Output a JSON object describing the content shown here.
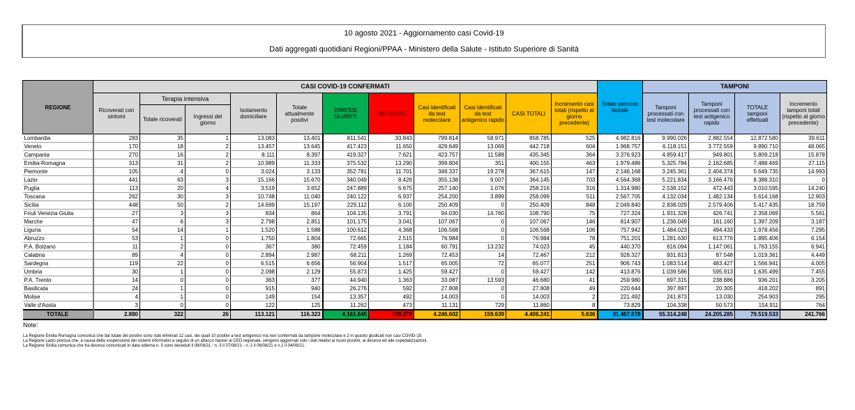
{
  "header": {
    "title": "10 agosto 2021 - Aggiornamento casi Covid-19",
    "subtitle": "Dati aggregati quotidiani Regioni/PPAA - Ministero della Salute - Istituto Superiore di Sanità"
  },
  "table": {
    "group_casi": "CASI COVID-19 CONFERMATI",
    "group_terapia": "Terapia intensiva",
    "group_tamponi": "TAMPONI",
    "columns": [
      "REGIONE",
      "Ricoverati con sintomi",
      "Totale ricoverati",
      "Ingressi del giorno",
      "Isolamento domiciliare",
      "Totale attualmente positivi",
      "DIMESSI GUARITI",
      "DECEDUTI",
      "Casi identificati da test molecolare",
      "Casi identificati da test antigenico rapido",
      "CASI TOTALI",
      "Incremento casi totali (rispetto al giorno precedente)",
      "Totale persone testate",
      "Tamponi processati con test molecolare",
      "Tamponi processati con test antigenico rapido",
      "TOTALE tamponi effettuati",
      "Incremento tamponi totali (rispetto al giorno precedente)"
    ],
    "rows": [
      [
        "Lombardia",
        "283",
        "35",
        "1",
        "13.083",
        "13.401",
        "811.541",
        "33.843",
        "799.814",
        "58.971",
        "858.785",
        "525",
        "4.982.816",
        "9.990.026",
        "2.882.554",
        "12.872.580",
        "39.611"
      ],
      [
        "Veneto",
        "170",
        "18",
        "2",
        "13.457",
        "13.645",
        "417.423",
        "11.650",
        "429.649",
        "13.069",
        "442.718",
        "604",
        "1.968.757",
        "6.118.151",
        "3.772.559",
        "9.890.710",
        "48.065"
      ],
      [
        "Campania",
        "270",
        "16",
        "2",
        "8.111",
        "8.397",
        "419.327",
        "7.621",
        "423.757",
        "11.588",
        "435.345",
        "364",
        "3.376.923",
        "4.859.417",
        "949.801",
        "5.809.218",
        "15.878"
      ],
      [
        "Emilia-Romagna",
        "313",
        "31",
        "2",
        "10.989",
        "11.333",
        "375.532",
        "13.290",
        "399.804",
        "351",
        "400.155",
        "463",
        "1.979.486",
        "5.325.784",
        "2.162.685",
        "7.488.469",
        "27.115"
      ],
      [
        "Piemonte",
        "105",
        "4",
        "0",
        "3.024",
        "3.133",
        "352.781",
        "11.701",
        "348.337",
        "19.278",
        "367.615",
        "147",
        "2.146.168",
        "3.245.361",
        "2.404.374",
        "5.649.735",
        "14.993"
      ],
      [
        "Lazio",
        "441",
        "63",
        "3",
        "15.166",
        "15.670",
        "340.049",
        "8.426",
        "355.138",
        "9.007",
        "364.145",
        "703",
        "4.564.368",
        "5.221.834",
        "3.166.476",
        "8.388.310",
        "0"
      ],
      [
        "Puglia",
        "113",
        "20",
        "4",
        "3.519",
        "3.652",
        "247.889",
        "6.675",
        "257.140",
        "1.076",
        "258.216",
        "316",
        "1.314.980",
        "2.538.152",
        "472.443",
        "3.010.595",
        "14.240"
      ],
      [
        "Toscana",
        "262",
        "30",
        "3",
        "10.748",
        "11.040",
        "240.122",
        "6.937",
        "254.200",
        "3.899",
        "258.099",
        "511",
        "2.567.705",
        "4.132.034",
        "1.482.134",
        "5.614.168",
        "12.903"
      ],
      [
        "Sicilia",
        "448",
        "50",
        "2",
        "14.699",
        "15.197",
        "229.112",
        "6.100",
        "250.409",
        "0",
        "250.409",
        "848",
        "2.049.840",
        "2.838.029",
        "2.579.406",
        "5.417.435",
        "18.759"
      ],
      [
        "Friuli Venezia Giulia",
        "27",
        "3",
        "3",
        "834",
        "864",
        "104.135",
        "3.791",
        "94.030",
        "14.760",
        "108.790",
        "75",
        "727.324",
        "1.931.328",
        "426.741",
        "2.358.069",
        "5.561"
      ],
      [
        "Marche",
        "47",
        "6",
        "3",
        "2.798",
        "2.851",
        "101.175",
        "3.041",
        "107.067",
        "0",
        "107.067",
        "146",
        "814.907",
        "1.236.049",
        "161.160",
        "1.397.209",
        "3.187"
      ],
      [
        "Liguria",
        "54",
        "14",
        "1",
        "1.520",
        "1.588",
        "100.612",
        "4.368",
        "106.568",
        "0",
        "106.568",
        "106",
        "757.942",
        "1.484.023",
        "494.433",
        "1.978.456",
        "7.295"
      ],
      [
        "Abruzzo",
        "53",
        "1",
        "0",
        "1.750",
        "1.804",
        "72.665",
        "2.515",
        "76.984",
        "0",
        "76.984",
        "78",
        "751.201",
        "1.281.630",
        "613.776",
        "1.895.406",
        "6.154"
      ],
      [
        "P.A. Bolzano",
        "11",
        "2",
        "0",
        "367",
        "380",
        "72.459",
        "1.184",
        "60.791",
        "13.232",
        "74.023",
        "45",
        "440.370",
        "616.094",
        "1.147.061",
        "1.763.155",
        "6.941"
      ],
      [
        "Calabria",
        "89",
        "4",
        "0",
        "2.894",
        "2.987",
        "68.211",
        "1.269",
        "72.453",
        "14",
        "72.467",
        "212",
        "928.327",
        "931.813",
        "87.548",
        "1.019.361",
        "4.449"
      ],
      [
        "Sardegna",
        "119",
        "22",
        "0",
        "6.515",
        "6.656",
        "56.904",
        "1.517",
        "65.005",
        "72",
        "65.077",
        "251",
        "906.743",
        "1.083.514",
        "483.427",
        "1.566.941",
        "4.005"
      ],
      [
        "Umbria",
        "30",
        "1",
        "0",
        "2.098",
        "2.129",
        "55.873",
        "1.425",
        "59.427",
        "0",
        "59.427",
        "142",
        "413.876",
        "1.039.586",
        "595.913",
        "1.635.499",
        "7.455"
      ],
      [
        "P.A. Trento",
        "14",
        "0",
        "0",
        "363",
        "377",
        "44.940",
        "1.363",
        "33.087",
        "13.593",
        "46.680",
        "41",
        "259.980",
        "697.315",
        "238.886",
        "936.201",
        "3.205"
      ],
      [
        "Basilicata",
        "24",
        "1",
        "0",
        "915",
        "940",
        "26.276",
        "592",
        "27.808",
        "0",
        "27.808",
        "49",
        "220.644",
        "397.897",
        "20.305",
        "418.202",
        "891"
      ],
      [
        "Molise",
        "4",
        "1",
        "0",
        "149",
        "154",
        "13.357",
        "492",
        "14.003",
        "0",
        "14.003",
        "2",
        "221.492",
        "241.873",
        "13.030",
        "254.903",
        "295"
      ],
      [
        "Valle d'Aosta",
        "3",
        "0",
        "0",
        "122",
        "125",
        "11.262",
        "473",
        "11.131",
        "729",
        "11.860",
        "8",
        "73.829",
        "104.338",
        "50.573",
        "154.911",
        "764"
      ]
    ],
    "total": [
      "TOTALE",
      "2.880",
      "322",
      "26",
      "113.121",
      "116.323",
      "4.161.645",
      "128.273",
      "4.246.602",
      "159.639",
      "4.406.241",
      "5.636",
      "31.467.678",
      "55.314.248",
      "24.205.285",
      "79.519.533",
      "241.766"
    ]
  },
  "notes": {
    "title": "Note:",
    "lines": [
      "La Regione Emilia Romagna comunica che dal totale dei positivi sono stati eliminati 12 casi, dei quali 10 positivi a test antigenico ma non confermati da tampone molecolare e 2 in quanto giudicati non casi COVID-19.",
      "La Regione Lazio precisa che, a causa della sospensione dei sistemi informatici a seguito di un attacco hacker al CED regionale, vengono aggiornati solo i dati relativi ai nuovi positivi, ai decessi ed alle ospedalizzazioni.",
      "La Regione Sicilia comunica che tra decessi comunicati in data odierna n. 5 sono deceduti il 08/08/21 - n. 3 il 07/08/21 - n. 2 il 06/08/21 e n.1 il 04/08/21."
    ]
  },
  "colors": {
    "green": "#00b050",
    "red": "#ff0000",
    "orange": "#ffc000",
    "cyan": "#00b0f0",
    "light_blue": "#b4c6e7",
    "grey": "#d9d9d9"
  }
}
